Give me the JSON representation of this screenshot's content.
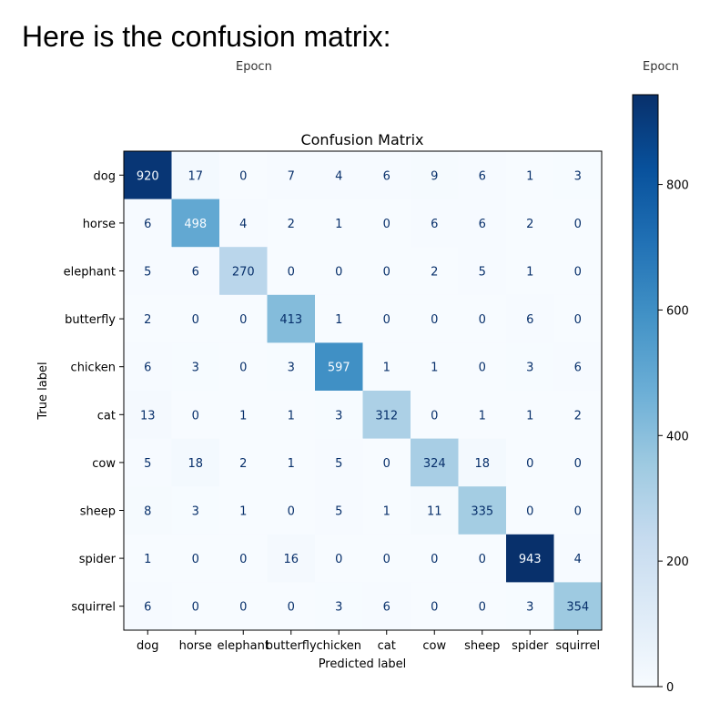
{
  "heading": "Here is the confusion matrix:",
  "epoch_labels": [
    "Epocn",
    "Epocn"
  ],
  "chart_data": {
    "type": "heatmap",
    "title": "Confusion Matrix",
    "xlabel": "Predicted label",
    "ylabel": "True label",
    "categories": [
      "dog",
      "horse",
      "elephant",
      "butterfly",
      "chicken",
      "cat",
      "cow",
      "sheep",
      "spider",
      "squirrel"
    ],
    "x_tick_labels": [
      "dog",
      "horse",
      "elephant",
      "butterfly",
      "chicken",
      "cat",
      "cow",
      "sheep",
      "spider",
      "squirrel"
    ],
    "y_tick_labels": [
      "dog",
      "horse",
      "elephant",
      "butterfly",
      "chicken",
      "cat",
      "cow",
      "sheep",
      "spider",
      "squirrel"
    ],
    "values": [
      [
        920,
        17,
        0,
        7,
        4,
        6,
        9,
        6,
        1,
        3
      ],
      [
        6,
        498,
        4,
        2,
        1,
        0,
        6,
        6,
        2,
        0
      ],
      [
        5,
        6,
        270,
        0,
        0,
        0,
        2,
        5,
        1,
        0
      ],
      [
        2,
        0,
        0,
        413,
        1,
        0,
        0,
        0,
        6,
        0
      ],
      [
        6,
        3,
        0,
        3,
        597,
        1,
        1,
        0,
        3,
        6
      ],
      [
        13,
        0,
        1,
        1,
        3,
        312,
        0,
        1,
        1,
        2
      ],
      [
        5,
        18,
        2,
        1,
        5,
        0,
        324,
        18,
        0,
        0
      ],
      [
        8,
        3,
        1,
        0,
        5,
        1,
        11,
        335,
        0,
        0
      ],
      [
        1,
        0,
        0,
        16,
        0,
        0,
        0,
        0,
        943,
        4
      ],
      [
        6,
        0,
        0,
        0,
        3,
        6,
        0,
        0,
        3,
        354
      ]
    ],
    "colormap": "Blues",
    "colorbar": {
      "range": [
        0,
        943
      ],
      "ticks": [
        0,
        200,
        400,
        600,
        800
      ],
      "tick_labels": [
        "0",
        "200",
        "400",
        "600",
        "800"
      ]
    },
    "colors": {
      "low": "#f7fbff",
      "high": "#08306b",
      "dark_text": "#08306b",
      "light_text": "#f7fbff"
    }
  }
}
